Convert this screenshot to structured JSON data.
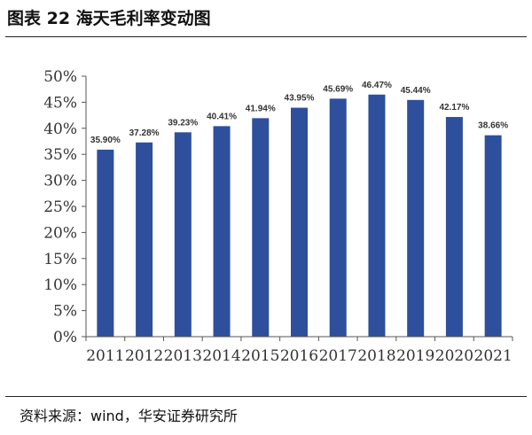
{
  "figure_title": "图表 22 海天毛利率变动图",
  "source_text": "资料来源：wind，华安证券研究所",
  "chart_data": {
    "type": "bar",
    "categories": [
      "2011",
      "2012",
      "2013",
      "2014",
      "2015",
      "2016",
      "2017",
      "2018",
      "2019",
      "2020",
      "2021"
    ],
    "values": [
      35.9,
      37.28,
      39.23,
      40.41,
      41.94,
      43.95,
      45.69,
      46.47,
      45.44,
      42.17,
      38.66
    ],
    "data_labels": [
      "35.90%",
      "37.28%",
      "39.23%",
      "40.41%",
      "41.94%",
      "43.95%",
      "45.69%",
      "46.47%",
      "45.44%",
      "42.17%",
      "38.66%"
    ],
    "y_ticks": [
      "0%",
      "5%",
      "10%",
      "15%",
      "20%",
      "25%",
      "30%",
      "35%",
      "40%",
      "45%",
      "50%"
    ],
    "ylim": [
      0,
      50
    ],
    "bar_color": "#2e4f9c",
    "grid": false,
    "legend": "none"
  }
}
